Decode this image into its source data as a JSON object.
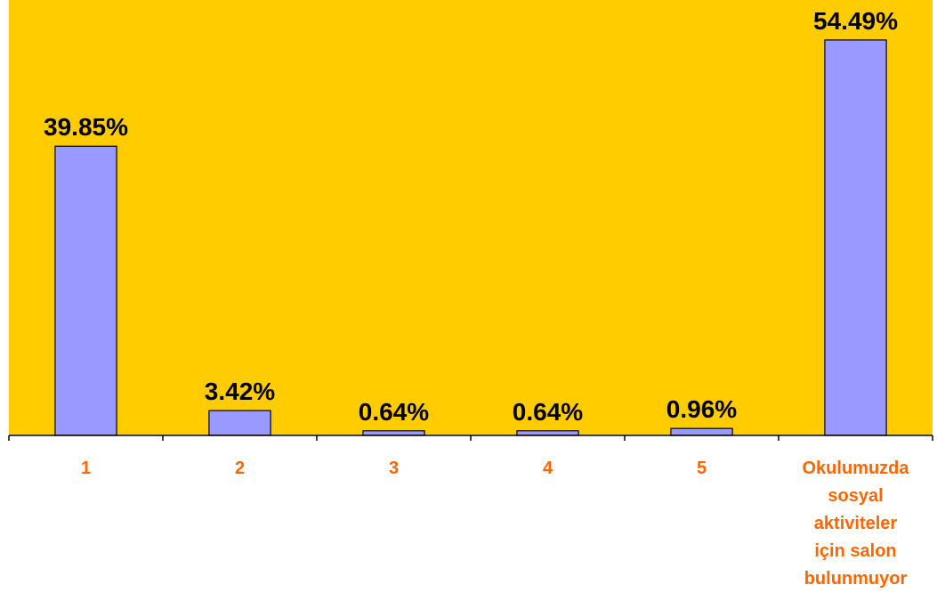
{
  "chart_data": {
    "type": "bar",
    "categories": [
      "1",
      "2",
      "3",
      "4",
      "5",
      [
        "Okulumuzda",
        "sosyal",
        "aktiviteler",
        "için salon",
        "bulunmuyor"
      ]
    ],
    "values": [
      39.85,
      3.42,
      0.64,
      0.64,
      0.96,
      54.49
    ],
    "value_labels": [
      "39.85%",
      "3.42%",
      "0.64%",
      "0.64%",
      "0.96%",
      "54.49%"
    ],
    "ylim": [
      0,
      60
    ],
    "grid": false,
    "legend": "none",
    "colors": {
      "plot_background": "#FFCC00",
      "bar_fill": "#9999FF",
      "bar_stroke": "#000000",
      "category_label": "#FF6600",
      "value_label": "#000000"
    }
  }
}
